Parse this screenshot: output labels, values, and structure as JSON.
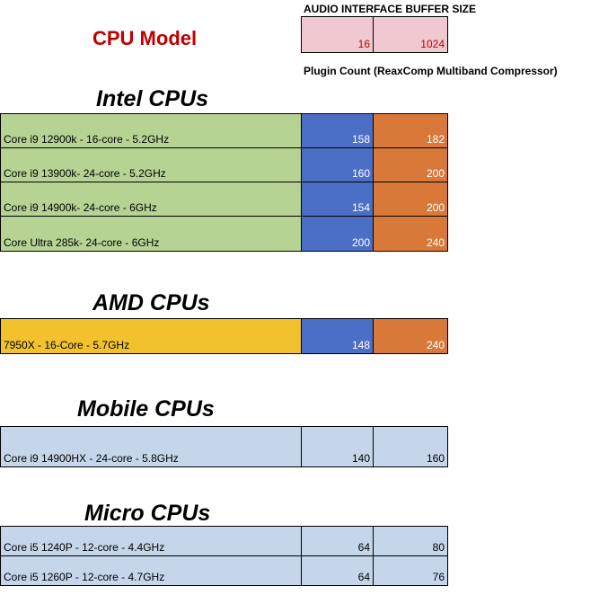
{
  "header": {
    "title": "CPU Model",
    "buffer_label": "AUDIO INTERFACE BUFFER SIZE",
    "buffer_sizes": [
      "16",
      "1024"
    ],
    "plugin_label": "Plugin Count (ReaxComp Multiband Compressor)"
  },
  "sections": [
    {
      "title": "Intel CPUs",
      "color": "#b6d394",
      "rows": [
        {
          "cpu": "Core i9 12900k - 16-core  - 5.2GHz",
          "v16": "158",
          "v1024": "182"
        },
        {
          "cpu": "Core i9 13900k- 24-core  - 5.2GHz",
          "v16": "160",
          "v1024": "200"
        },
        {
          "cpu": "Core i9 14900k- 24-core  - 6GHz",
          "v16": "154",
          "v1024": "200"
        },
        {
          "cpu": "Core Ultra 285k- 24-core  - 6GHz",
          "v16": "200",
          "v1024": "240"
        }
      ]
    },
    {
      "title": "AMD CPUs",
      "color": "#f2c12e",
      "rows": [
        {
          "cpu": "7950X - 16-Core - 5.7GHz",
          "v16": "148",
          "v1024": "240"
        }
      ]
    },
    {
      "title": "Mobile CPUs",
      "color": "#c5d5ea",
      "rows": [
        {
          "cpu": "Core i9 14900HX - 24-core - 5.8GHz",
          "v16": "140",
          "v1024": "160"
        }
      ]
    },
    {
      "title": "Micro CPUs",
      "color": "#c5d5ea",
      "rows": [
        {
          "cpu": "Core i5 1240P - 12-core - 4.4GHz",
          "v16": "64",
          "v1024": "80"
        },
        {
          "cpu": "Core i5 1260P - 12-core - 4.7GHz",
          "v16": "64",
          "v1024": "76"
        }
      ]
    }
  ],
  "colors": {
    "title_red": "#c00000",
    "buffer_pink": "#f0c8d0",
    "col16_blue": "#4c6fc6",
    "col1024_orange": "#d8793a"
  }
}
